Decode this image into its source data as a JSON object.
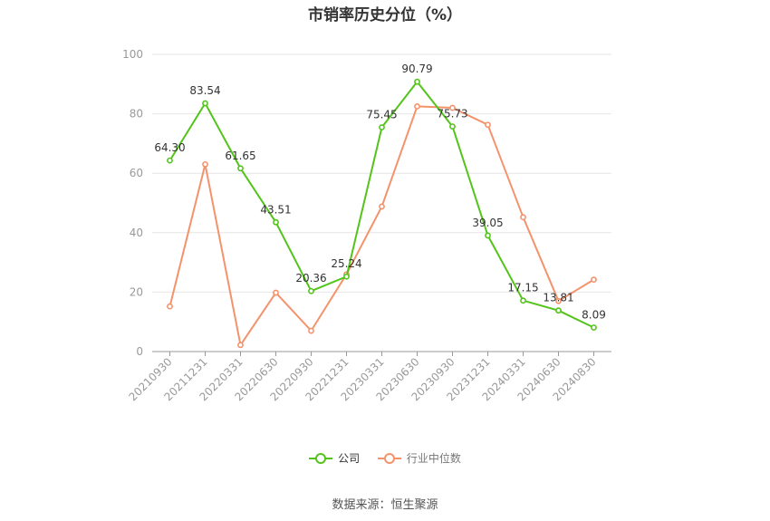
{
  "chart_data": {
    "type": "line",
    "title": "市销率历史分位（%）",
    "categories": [
      "20210930",
      "20211231",
      "20220331",
      "20220630",
      "20220930",
      "20221231",
      "20230331",
      "20230630",
      "20230930",
      "20231231",
      "20240331",
      "20240630",
      "20240830"
    ],
    "ylim": [
      0,
      100
    ],
    "yticks": [
      0,
      20,
      40,
      60,
      80,
      100
    ],
    "grid": true,
    "legend_position": "bottom",
    "series": [
      {
        "name": "公司",
        "color": "#52c41a",
        "values": [
          64.3,
          83.54,
          61.65,
          43.51,
          20.36,
          25.24,
          75.45,
          90.79,
          75.73,
          39.05,
          17.15,
          13.81,
          8.09
        ],
        "labels": [
          "64.30",
          "83.54",
          "61.65",
          "43.51",
          "20.36",
          "25.24",
          "75.45",
          "90.79",
          "75.73",
          "39.05",
          "17.15",
          "13.81",
          "8.09"
        ]
      },
      {
        "name": "行业中位数",
        "color": "#f4926b",
        "values": [
          15.2,
          63.0,
          2.2,
          19.8,
          7.0,
          26.0,
          48.8,
          82.5,
          82.0,
          76.3,
          45.2,
          17.0,
          24.2
        ]
      }
    ],
    "source": "数据来源：恒生聚源"
  }
}
